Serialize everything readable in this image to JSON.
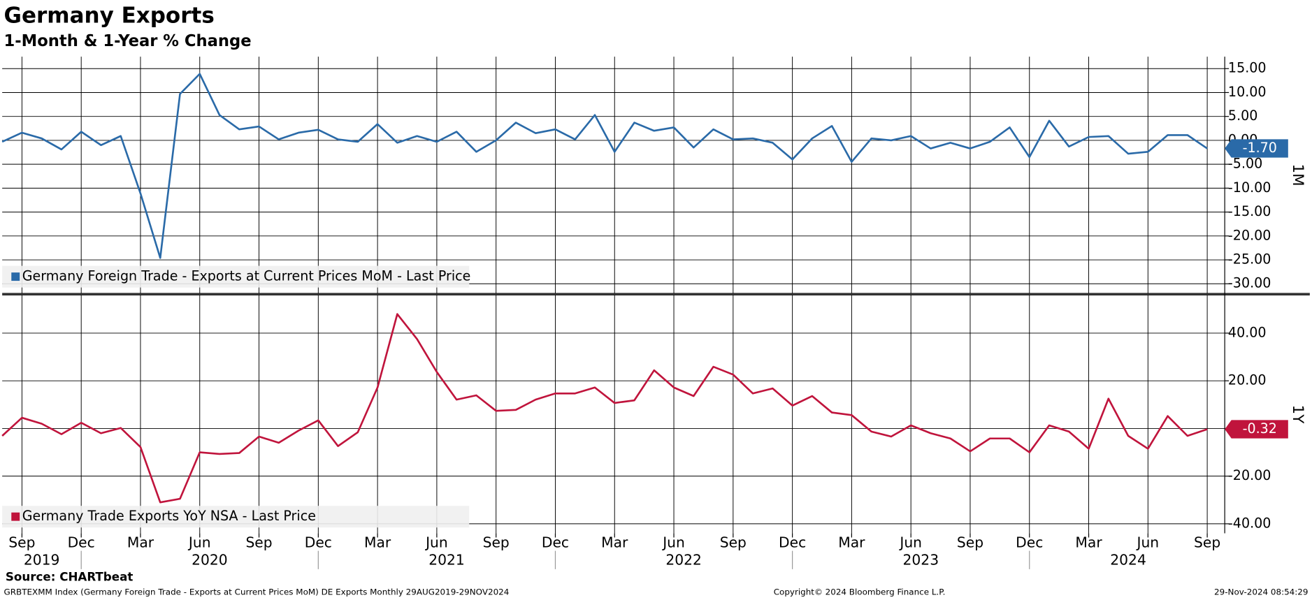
{
  "title": "Germany Exports",
  "subtitle": "1-Month & 1-Year % Change",
  "source": "Source: CHARTbeat",
  "footer_left": "GRBTEXMM Index (Germany Foreign Trade - Exports at Current Prices MoM) DE Exports  Monthly 29AUG2019-29NOV2024",
  "footer_center": "Copyright© 2024 Bloomberg Finance L.P.",
  "footer_right": "29-Nov-2024 08:54:29",
  "chart_data": [
    {
      "type": "line",
      "panel_label": "1M",
      "x": [
        "2019-08",
        "2019-09",
        "2019-10",
        "2019-11",
        "2019-12",
        "2020-01",
        "2020-02",
        "2020-03",
        "2020-04",
        "2020-05",
        "2020-06",
        "2020-07",
        "2020-08",
        "2020-09",
        "2020-10",
        "2020-11",
        "2020-12",
        "2021-01",
        "2021-02",
        "2021-03",
        "2021-04",
        "2021-05",
        "2021-06",
        "2021-07",
        "2021-08",
        "2021-09",
        "2021-10",
        "2021-11",
        "2021-12",
        "2022-01",
        "2022-02",
        "2022-03",
        "2022-04",
        "2022-05",
        "2022-06",
        "2022-07",
        "2022-08",
        "2022-09",
        "2022-10",
        "2022-11",
        "2022-12",
        "2023-01",
        "2023-02",
        "2023-03",
        "2023-04",
        "2023-05",
        "2023-06",
        "2023-07",
        "2023-08",
        "2023-09",
        "2023-10",
        "2023-11",
        "2023-12",
        "2024-01",
        "2024-02",
        "2024-03",
        "2024-04",
        "2024-05",
        "2024-06",
        "2024-07",
        "2024-08",
        "2024-09"
      ],
      "series": [
        {
          "name": "Germany Foreign Trade - Exports at Current Prices MoM - Last Price",
          "color": "#2a6aa8",
          "last_value_label": "-1.70",
          "values": [
            -0.3,
            1.6,
            0.4,
            -1.9,
            1.8,
            -1.0,
            0.9,
            -11.1,
            -24.6,
            9.7,
            13.9,
            5.3,
            2.3,
            2.9,
            0.2,
            1.6,
            2.2,
            0.2,
            -0.3,
            3.4,
            -0.5,
            0.9,
            -0.3,
            1.8,
            -2.4,
            0.0,
            3.7,
            1.5,
            2.3,
            0.2,
            5.3,
            -2.4,
            3.7,
            2.0,
            2.7,
            -1.5,
            2.3,
            0.2,
            0.4,
            -0.5,
            -4.0,
            0.4,
            3.0,
            -4.5,
            0.4,
            0.0,
            0.9,
            -1.7,
            -0.5,
            -1.7,
            -0.3,
            2.7,
            -3.5,
            4.1,
            -1.3,
            0.7,
            0.9,
            -2.8,
            -2.4,
            1.1,
            1.1,
            -1.7
          ]
        }
      ],
      "ylim": [
        -32,
        17.5
      ],
      "yticks": [
        {
          "value": 15,
          "label": "15.00"
        },
        {
          "value": 10,
          "label": "10.00"
        },
        {
          "value": 5,
          "label": "5.00"
        },
        {
          "value": 0,
          "label": "0.00"
        },
        {
          "value": -5,
          "label": "-5.00"
        },
        {
          "value": -10,
          "label": "-10.00"
        },
        {
          "value": -15,
          "label": "-15.00"
        },
        {
          "value": -20,
          "label": "-20.00"
        },
        {
          "value": -25,
          "label": "-25.00"
        },
        {
          "value": -30,
          "label": "-30.00"
        }
      ],
      "grid": true
    },
    {
      "type": "line",
      "panel_label": "1Y",
      "x": [
        "2019-08",
        "2019-09",
        "2019-10",
        "2019-11",
        "2019-12",
        "2020-01",
        "2020-02",
        "2020-03",
        "2020-04",
        "2020-05",
        "2020-06",
        "2020-07",
        "2020-08",
        "2020-09",
        "2020-10",
        "2020-11",
        "2020-12",
        "2021-01",
        "2021-02",
        "2021-03",
        "2021-04",
        "2021-05",
        "2021-06",
        "2021-07",
        "2021-08",
        "2021-09",
        "2021-10",
        "2021-11",
        "2021-12",
        "2022-01",
        "2022-02",
        "2022-03",
        "2022-04",
        "2022-05",
        "2022-06",
        "2022-07",
        "2022-08",
        "2022-09",
        "2022-10",
        "2022-11",
        "2022-12",
        "2023-01",
        "2023-02",
        "2023-03",
        "2023-04",
        "2023-05",
        "2023-06",
        "2023-07",
        "2023-08",
        "2023-09",
        "2023-10",
        "2023-11",
        "2023-12",
        "2024-01",
        "2024-02",
        "2024-03",
        "2024-04",
        "2024-05",
        "2024-06",
        "2024-07",
        "2024-08",
        "2024-09"
      ],
      "series": [
        {
          "name": "Germany Trade Exports YoY NSA - Last Price",
          "color": "#c0143c",
          "last_value_label": "-0.32",
          "values": [
            -3.1,
            4.5,
            2.0,
            -2.4,
            2.4,
            -2.0,
            0.2,
            -7.8,
            -31.0,
            -29.5,
            -10.0,
            -10.7,
            -10.3,
            -3.4,
            -6.0,
            -0.9,
            3.4,
            -7.4,
            -1.6,
            17.2,
            48.0,
            37.5,
            23.7,
            12.1,
            13.9,
            7.4,
            7.8,
            12.1,
            14.7,
            14.7,
            17.2,
            10.7,
            11.8,
            24.4,
            17.2,
            13.6,
            25.9,
            22.6,
            14.7,
            16.8,
            9.6,
            13.6,
            6.7,
            5.6,
            -1.3,
            -3.4,
            1.3,
            -2.0,
            -4.2,
            -9.6,
            -4.2,
            -4.2,
            -10.0,
            1.3,
            -1.3,
            -8.5,
            12.5,
            -3.1,
            -8.5,
            5.2,
            -3.1,
            -0.32
          ]
        }
      ],
      "ylim": [
        -44,
        56
      ],
      "yticks": [
        {
          "value": 40,
          "label": "40.00"
        },
        {
          "value": 20,
          "label": "20.00"
        },
        {
          "value": 0,
          "label": "0.00"
        },
        {
          "value": -20,
          "label": "-20.00"
        },
        {
          "value": -40,
          "label": "-40.00"
        }
      ],
      "xticks": [
        {
          "value": "2019-09",
          "label": "Sep"
        },
        {
          "value": "2019-12",
          "label": "Dec"
        },
        {
          "value": "2020-03",
          "label": "Mar"
        },
        {
          "value": "2020-06",
          "label": "Jun"
        },
        {
          "value": "2020-09",
          "label": "Sep"
        },
        {
          "value": "2020-12",
          "label": "Dec"
        },
        {
          "value": "2021-03",
          "label": "Mar"
        },
        {
          "value": "2021-06",
          "label": "Jun"
        },
        {
          "value": "2021-09",
          "label": "Sep"
        },
        {
          "value": "2021-12",
          "label": "Dec"
        },
        {
          "value": "2022-03",
          "label": "Mar"
        },
        {
          "value": "2022-06",
          "label": "Jun"
        },
        {
          "value": "2022-09",
          "label": "Sep"
        },
        {
          "value": "2022-12",
          "label": "Dec"
        },
        {
          "value": "2023-03",
          "label": "Mar"
        },
        {
          "value": "2023-06",
          "label": "Jun"
        },
        {
          "value": "2023-09",
          "label": "Sep"
        },
        {
          "value": "2023-12",
          "label": "Dec"
        },
        {
          "value": "2024-03",
          "label": "Mar"
        },
        {
          "value": "2024-06",
          "label": "Jun"
        },
        {
          "value": "2024-09",
          "label": "Sep"
        }
      ],
      "year_ticks": [
        "2019",
        "2020",
        "2021",
        "2022",
        "2023",
        "2024"
      ],
      "grid": true
    }
  ]
}
